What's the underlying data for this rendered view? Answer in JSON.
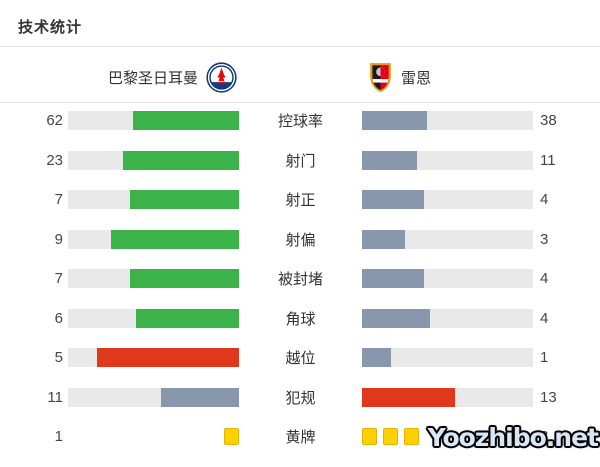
{
  "title": "技术统计",
  "teams": {
    "home": {
      "name": "巴黎圣日耳曼"
    },
    "away": {
      "name": "雷恩"
    }
  },
  "colors": {
    "green": "#3cb24a",
    "red": "#df381d",
    "slate": "#8897ab",
    "track": "#e9e9e9",
    "card_yellow": "#ffd100",
    "card_border": "#e8b200"
  },
  "stats": [
    {
      "label": "控球率",
      "home": 62,
      "away": 38,
      "home_color": "green",
      "away_color": "slate",
      "type": "bar"
    },
    {
      "label": "射门",
      "home": 23,
      "away": 11,
      "home_color": "green",
      "away_color": "slate",
      "type": "bar"
    },
    {
      "label": "射正",
      "home": 7,
      "away": 4,
      "home_color": "green",
      "away_color": "slate",
      "type": "bar"
    },
    {
      "label": "射偏",
      "home": 9,
      "away": 3,
      "home_color": "green",
      "away_color": "slate",
      "type": "bar"
    },
    {
      "label": "被封堵",
      "home": 7,
      "away": 4,
      "home_color": "green",
      "away_color": "slate",
      "type": "bar"
    },
    {
      "label": "角球",
      "home": 6,
      "away": 4,
      "home_color": "green",
      "away_color": "slate",
      "type": "bar"
    },
    {
      "label": "越位",
      "home": 5,
      "away": 1,
      "home_color": "red",
      "away_color": "slate",
      "type": "bar"
    },
    {
      "label": "犯规",
      "home": 11,
      "away": 13,
      "home_color": "slate",
      "away_color": "red",
      "type": "bar"
    },
    {
      "label": "黄牌",
      "home": 1,
      "away": 3,
      "type": "cards"
    }
  ],
  "chart_data": {
    "type": "bar",
    "title": "技术统计",
    "categories": [
      "控球率",
      "射门",
      "射正",
      "射偏",
      "被封堵",
      "角球",
      "越位",
      "犯规",
      "黄牌"
    ],
    "series": [
      {
        "name": "巴黎圣日耳曼",
        "values": [
          62,
          23,
          7,
          9,
          7,
          6,
          5,
          11,
          1
        ]
      },
      {
        "name": "雷恩",
        "values": [
          38,
          11,
          4,
          3,
          4,
          4,
          1,
          13,
          3
        ]
      }
    ],
    "layout": "mirrored horizontal bars, fills anchored toward center, fill length = team share of row total"
  },
  "watermark": "Yoozhibo.net"
}
